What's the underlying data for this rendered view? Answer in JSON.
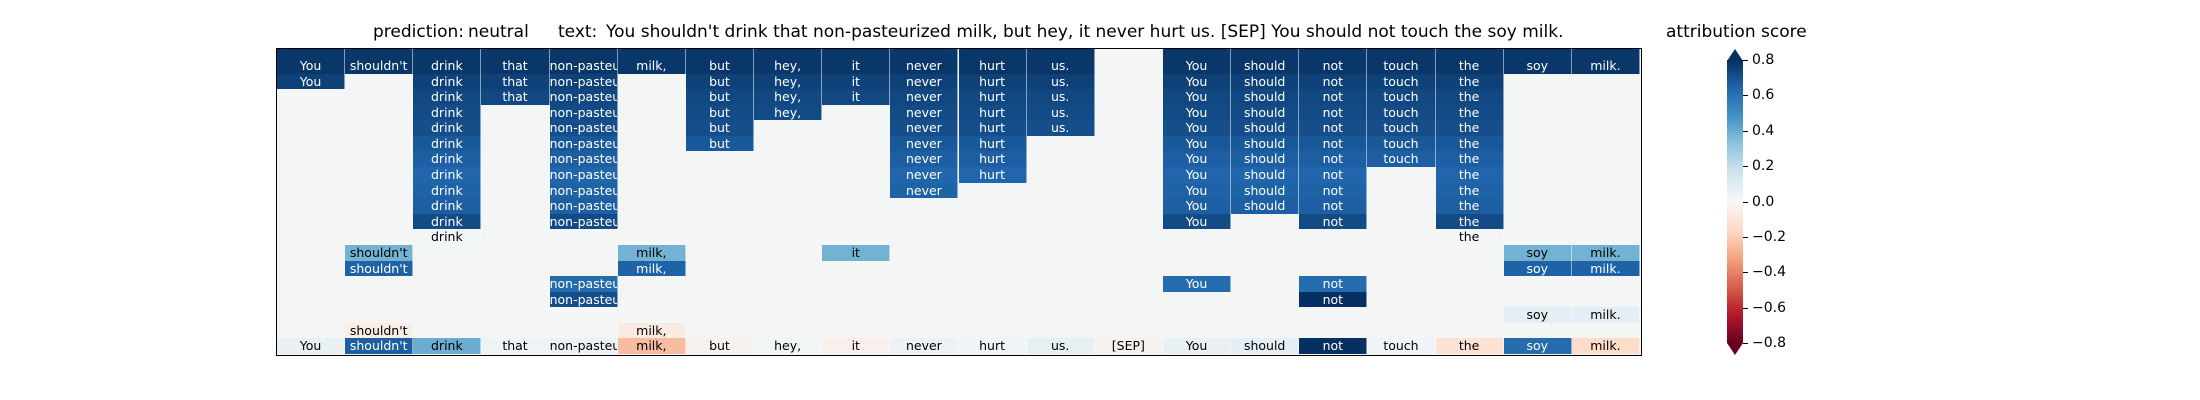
{
  "chart_data": {
    "type": "heatmap",
    "title": {
      "prediction_label": "prediction:",
      "prediction_value": "neutral",
      "text_label": "text:",
      "text_value": "You shouldn't drink that non-pasteurized milk, but hey, it never hurt us. [SEP] You should not touch the soy milk."
    },
    "colorbar": {
      "label": "attribution score",
      "range": [
        -0.8,
        0.8
      ],
      "ticks": [
        0.8,
        0.6,
        0.4,
        0.2,
        0.0,
        -0.2,
        -0.4,
        -0.6,
        -0.8
      ],
      "tick_labels": [
        "0.8",
        "0.6",
        "0.4",
        "0.2",
        "0.0",
        "−0.2",
        "−0.4",
        "−0.6",
        "−0.8"
      ],
      "colormap": "RdBu",
      "extend": "both"
    },
    "tokens": [
      "You",
      "shouldn't",
      "drink",
      "that",
      "non-pasteurized",
      "milk,",
      "but",
      "hey,",
      "it",
      "never",
      "hurt",
      "us.",
      "[SEP]",
      "You",
      "should",
      "not",
      "touch",
      "the",
      "soy",
      "milk."
    ],
    "token_labels": [
      "You",
      "shouldn't",
      "drink",
      "that",
      "non-pasteuriz",
      "milk,",
      "but",
      "hey,",
      "it",
      "never",
      "hurt",
      "us.",
      "[SEP]",
      "You",
      "should",
      "not",
      "touch",
      "the",
      "soy",
      "milk."
    ],
    "rows": [
      [
        0.78,
        0.78,
        0.78,
        0.78,
        0.78,
        0.78,
        0.78,
        0.78,
        0.78,
        0.78,
        0.78,
        0.78,
        0.0,
        0.78,
        0.78,
        0.78,
        0.78,
        0.78,
        0.78,
        0.78
      ],
      [
        0.75,
        0.0,
        0.75,
        0.75,
        0.75,
        0.0,
        0.75,
        0.75,
        0.75,
        0.75,
        0.75,
        0.75,
        0.0,
        0.75,
        0.75,
        0.75,
        0.75,
        0.75,
        0.0,
        0.0
      ],
      [
        0.0,
        0.0,
        0.73,
        0.73,
        0.73,
        0.0,
        0.73,
        0.73,
        0.73,
        0.73,
        0.73,
        0.73,
        0.0,
        0.73,
        0.73,
        0.73,
        0.73,
        0.73,
        0.0,
        0.0
      ],
      [
        0.0,
        0.0,
        0.72,
        0.0,
        0.72,
        0.0,
        0.72,
        0.72,
        0.0,
        0.72,
        0.72,
        0.72,
        0.0,
        0.72,
        0.72,
        0.72,
        0.72,
        0.72,
        0.0,
        0.0
      ],
      [
        0.0,
        0.0,
        0.71,
        0.0,
        0.71,
        0.0,
        0.71,
        0.0,
        0.0,
        0.71,
        0.71,
        0.71,
        0.0,
        0.71,
        0.71,
        0.71,
        0.71,
        0.71,
        0.0,
        0.0
      ],
      [
        0.0,
        0.0,
        0.68,
        0.0,
        0.68,
        0.0,
        0.68,
        0.0,
        0.0,
        0.68,
        0.68,
        0.0,
        0.0,
        0.68,
        0.68,
        0.68,
        0.68,
        0.68,
        0.0,
        0.0
      ],
      [
        0.0,
        0.0,
        0.66,
        0.0,
        0.66,
        0.0,
        0.0,
        0.0,
        0.0,
        0.66,
        0.66,
        0.0,
        0.0,
        0.66,
        0.66,
        0.66,
        0.66,
        0.66,
        0.0,
        0.0
      ],
      [
        0.0,
        0.0,
        0.64,
        0.0,
        0.64,
        0.0,
        0.0,
        0.0,
        0.0,
        0.64,
        0.64,
        0.0,
        0.0,
        0.64,
        0.64,
        0.64,
        0.0,
        0.64,
        0.0,
        0.0
      ],
      [
        0.0,
        0.0,
        0.65,
        0.0,
        0.65,
        0.0,
        0.0,
        0.0,
        0.0,
        0.65,
        0.0,
        0.0,
        0.0,
        0.65,
        0.65,
        0.65,
        0.0,
        0.65,
        0.0,
        0.0
      ],
      [
        0.0,
        0.0,
        0.66,
        0.0,
        0.66,
        0.0,
        0.0,
        0.0,
        0.0,
        0.0,
        0.0,
        0.0,
        0.0,
        0.66,
        0.66,
        0.66,
        0.0,
        0.66,
        0.0,
        0.0
      ],
      [
        0.0,
        0.0,
        0.72,
        0.0,
        0.72,
        0.0,
        0.0,
        0.0,
        0.0,
        0.0,
        0.0,
        0.0,
        0.0,
        0.72,
        0.0,
        0.72,
        0.0,
        0.72,
        0.0,
        0.0
      ],
      [
        0.0,
        0.0,
        0.02,
        0.0,
        0.0,
        0.0,
        0.0,
        0.0,
        0.0,
        0.0,
        0.0,
        0.0,
        0.0,
        0.0,
        0.0,
        0.0,
        0.0,
        0.015,
        0.0,
        0.0
      ],
      [
        0.0,
        0.38,
        0.0,
        0.0,
        0.0,
        0.38,
        0.0,
        0.0,
        0.38,
        0.0,
        0.0,
        0.0,
        0.0,
        0.0,
        0.0,
        0.0,
        0.0,
        0.0,
        0.38,
        0.38
      ],
      [
        0.0,
        0.65,
        0.0,
        0.0,
        0.0,
        0.65,
        0.0,
        0.0,
        0.0,
        0.0,
        0.0,
        0.0,
        0.0,
        0.0,
        0.0,
        0.0,
        0.0,
        0.0,
        0.65,
        0.65
      ],
      [
        0.0,
        0.0,
        0.0,
        0.0,
        0.62,
        0.0,
        0.0,
        0.0,
        0.0,
        0.0,
        0.0,
        0.0,
        0.0,
        0.62,
        0.0,
        0.62,
        0.0,
        0.0,
        0.0,
        0.0
      ],
      [
        0.0,
        0.0,
        0.0,
        0.0,
        0.71,
        0.0,
        0.0,
        0.0,
        0.0,
        0.0,
        0.0,
        0.0,
        0.0,
        0.0,
        0.0,
        0.8,
        0.0,
        0.0,
        0.0,
        0.0
      ],
      [
        0.0,
        0.0,
        0.0,
        0.0,
        0.0,
        0.0,
        0.0,
        0.0,
        0.0,
        0.0,
        0.0,
        0.0,
        0.0,
        0.0,
        0.0,
        0.0,
        0.0,
        0.0,
        0.08,
        0.08
      ],
      [
        0.0,
        -0.06,
        0.0,
        0.0,
        0.0,
        -0.07,
        0.0,
        0.0,
        0.0,
        0.0,
        0.0,
        0.0,
        0.0,
        0.0,
        0.0,
        0.0,
        0.0,
        0.0,
        0.0,
        0.0
      ],
      [
        0.06,
        0.66,
        0.4,
        0.04,
        0.05,
        -0.25,
        -0.03,
        0.02,
        -0.04,
        0.05,
        0.03,
        0.07,
        -0.03,
        0.06,
        0.08,
        0.8,
        0.03,
        -0.12,
        0.62,
        -0.15
      ]
    ]
  }
}
